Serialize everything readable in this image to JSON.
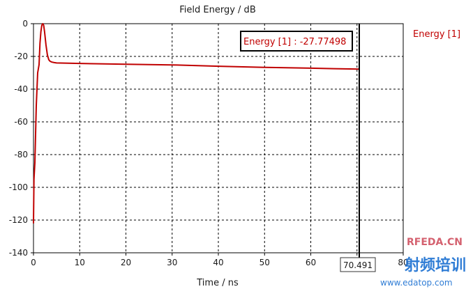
{
  "chart_data": {
    "type": "line",
    "title": "Field Energy / dB",
    "xlabel": "Time / ns",
    "ylabel": "",
    "xlim": [
      0,
      80
    ],
    "ylim": [
      -140,
      0
    ],
    "x_ticks": [
      "0",
      "10",
      "20",
      "30",
      "40",
      "50",
      "60",
      "",
      "80"
    ],
    "y_ticks": [
      "0",
      "-20",
      "-40",
      "-60",
      "-80",
      "-100",
      "-120",
      "-140"
    ],
    "grid": true,
    "legend": "right-outside",
    "series": [
      {
        "name": "Energy [1]",
        "color": "#c00000",
        "x": [
          0.0,
          0.1,
          0.3,
          0.6,
          0.9,
          1.2,
          1.4,
          1.6,
          1.8,
          2.0,
          2.2,
          2.4,
          2.7,
          3.0,
          3.3,
          3.6,
          4.0,
          4.5,
          5.0,
          10,
          20,
          30,
          40,
          50,
          60,
          65,
          70.491
        ],
        "y": [
          -122,
          -95,
          -85,
          -50,
          -30,
          -25,
          -12,
          -5,
          -1,
          0,
          -1,
          -5,
          -13,
          -19,
          -22,
          -23,
          -23.5,
          -23.8,
          -24,
          -24.3,
          -24.8,
          -25.2,
          -26,
          -26.7,
          -27.2,
          -27.5,
          -27.77
        ]
      }
    ],
    "cursor": {
      "x": 70.491,
      "label": "70.491",
      "readout": "Energy [1] : -27.77498"
    }
  },
  "watermark": {
    "brand": "射频培训",
    "site_cn": "RFEDA.CN",
    "url": "www.edatop.com"
  }
}
